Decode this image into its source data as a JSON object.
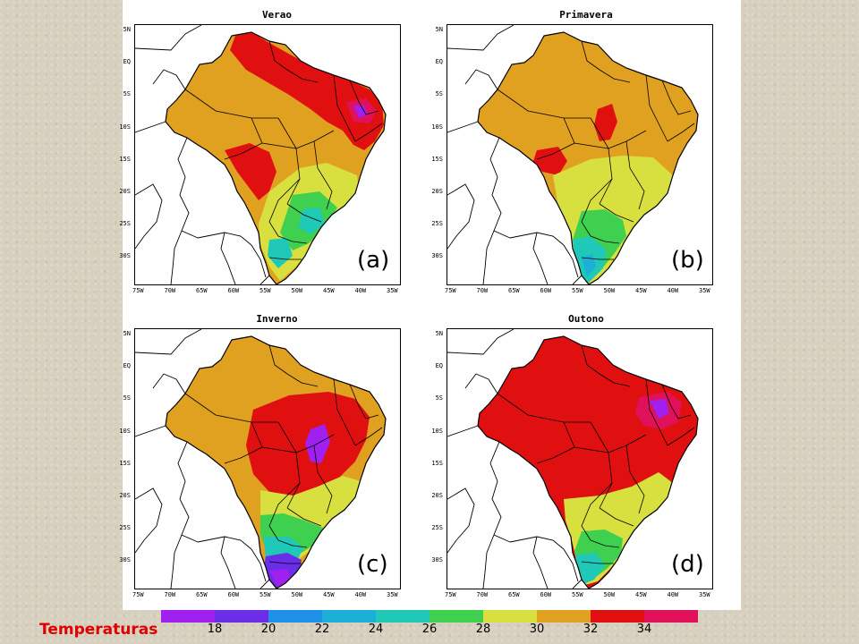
{
  "chart_data": [
    {
      "type": "heatmap",
      "title": "Verao",
      "panel_label": "(a)",
      "y_ticks": [
        "5N",
        "EQ",
        "5S",
        "10S",
        "15S",
        "20S",
        "25S",
        "30S"
      ],
      "x_ticks": [
        "75W",
        "70W",
        "65W",
        "60W",
        "55W",
        "50W",
        "45W",
        "40W",
        "35W"
      ],
      "dominant_class": "30-32",
      "hot_regions": [
        {
          "area": "north / Amapa-Para coast",
          "class": "32-34"
        },
        {
          "area": "northeast interior",
          "class": "32-34"
        },
        {
          "area": "northeast core",
          "class": ">34"
        },
        {
          "area": "west-central (Mato Grosso west)",
          "class": "32-34"
        }
      ],
      "cool_regions": [
        {
          "area": "southeast",
          "class": "24-28"
        },
        {
          "area": "south",
          "class": "26-30"
        }
      ]
    },
    {
      "type": "heatmap",
      "title": "Primavera",
      "panel_label": "(b)",
      "y_ticks": [
        "5N",
        "EQ",
        "5S",
        "10S",
        "15S",
        "20S",
        "25S",
        "30S"
      ],
      "x_ticks": [
        "75W",
        "70W",
        "65W",
        "60W",
        "55W",
        "50W",
        "45W",
        "40W",
        "35W"
      ],
      "dominant_class": "30-32",
      "hot_regions": [
        {
          "area": "central (Tocantins)",
          "class": "32-34"
        },
        {
          "area": "west-central (Mato Grosso west)",
          "class": "32-34"
        }
      ],
      "cool_regions": [
        {
          "area": "southeast",
          "class": "24-28"
        },
        {
          "area": "south",
          "class": "22-26"
        }
      ]
    },
    {
      "type": "heatmap",
      "title": "Inverno",
      "panel_label": "(c)",
      "y_ticks": [
        "5N",
        "EQ",
        "5S",
        "10S",
        "15S",
        "20S",
        "25S",
        "30S"
      ],
      "x_ticks": [
        "75W",
        "70W",
        "65W",
        "60W",
        "55W",
        "50W",
        "45W",
        "40W",
        "35W"
      ],
      "dominant_class": "30-32",
      "hot_regions": [
        {
          "area": "central Brazil",
          "class": "32-34"
        },
        {
          "area": "central core (Goias-Tocantins)",
          "class": ">34"
        }
      ],
      "cool_regions": [
        {
          "area": "southeast",
          "class": "24-28"
        },
        {
          "area": "south",
          "class": "18-22"
        }
      ]
    },
    {
      "type": "heatmap",
      "title": "Outono",
      "panel_label": "(d)",
      "y_ticks": [
        "5N",
        "EQ",
        "5S",
        "10S",
        "15S",
        "20S",
        "25S",
        "30S"
      ],
      "x_ticks": [
        "75W",
        "70W",
        "65W",
        "60W",
        "55W",
        "50W",
        "45W",
        "40W",
        "35W"
      ],
      "dominant_class": "32-34",
      "hot_regions": [
        {
          "area": "northeast interior (Piaui)",
          "class": ">34"
        }
      ],
      "cool_regions": [
        {
          "area": "southeast",
          "class": "26-30"
        },
        {
          "area": "south",
          "class": "22-26"
        }
      ]
    }
  ],
  "legend": {
    "title": "Temperaturas",
    "tick_labels": [
      "18",
      "20",
      "22",
      "24",
      "26",
      "28",
      "30",
      "32",
      "34"
    ],
    "colors": [
      "#a020f0",
      "#6a2ee8",
      "#1e90e8",
      "#1cb0d8",
      "#20c8b8",
      "#40d050",
      "#d8e040",
      "#e0a020",
      "#e01010",
      "#e0105a"
    ]
  }
}
